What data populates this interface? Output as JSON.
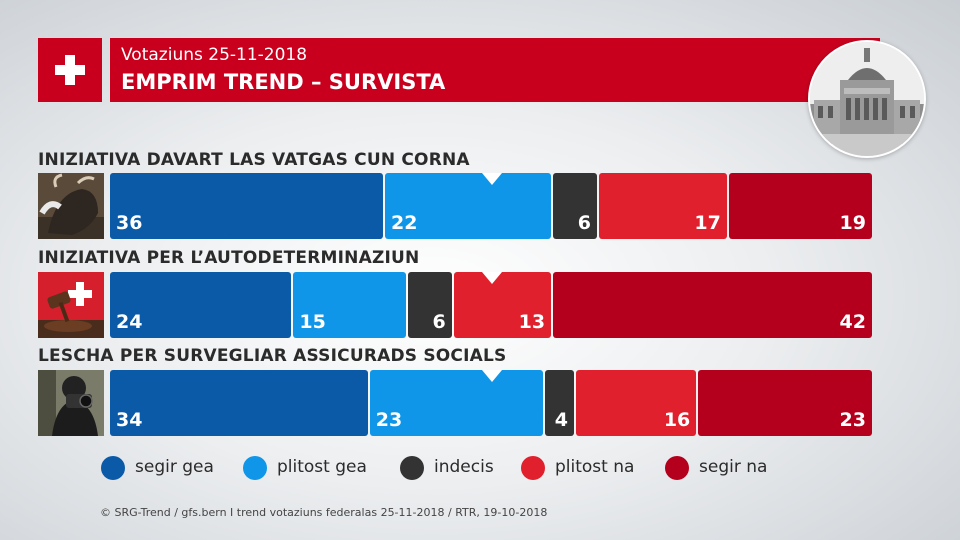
{
  "header": {
    "subtitle": "Votaziuns 25-11-2018",
    "title": "EMPRIM TREND – SURVISTA"
  },
  "colors": {
    "segir_gea": "#0a5aa8",
    "plitost_gea": "#0f96e8",
    "indecis": "#333333",
    "plitost_na": "#e0202c",
    "segir_na": "#b4001c",
    "brand_red": "#c8001e"
  },
  "chart_data": {
    "type": "bar",
    "orientation": "horizontal-stacked-100",
    "categories": [
      "INIZIATIVA DAVART LAS VATGAS CUN CORNA",
      "INIZIATIVA PER L’AUTODETERMINAZIUN",
      "LESCHA PER SURVEGLIAR ASSICURADS SOCIALS"
    ],
    "series": [
      {
        "name": "segir gea",
        "values": [
          36,
          24,
          34
        ]
      },
      {
        "name": "plitost gea",
        "values": [
          22,
          15,
          23
        ]
      },
      {
        "name": "indecis",
        "values": [
          6,
          6,
          4
        ]
      },
      {
        "name": "plitost na",
        "values": [
          17,
          13,
          16
        ]
      },
      {
        "name": "segir na",
        "values": [
          19,
          42,
          23
        ]
      }
    ],
    "marker_at_percent": 50,
    "legend_position": "bottom"
  },
  "legend": [
    "segir gea",
    "plitost gea",
    "indecis",
    "plitost na",
    "segir na"
  ],
  "footer": "© SRG-Trend / gfs.bern  I  trend votaziuns federalas 25-11-2018 / RTR, 19-10-2018"
}
